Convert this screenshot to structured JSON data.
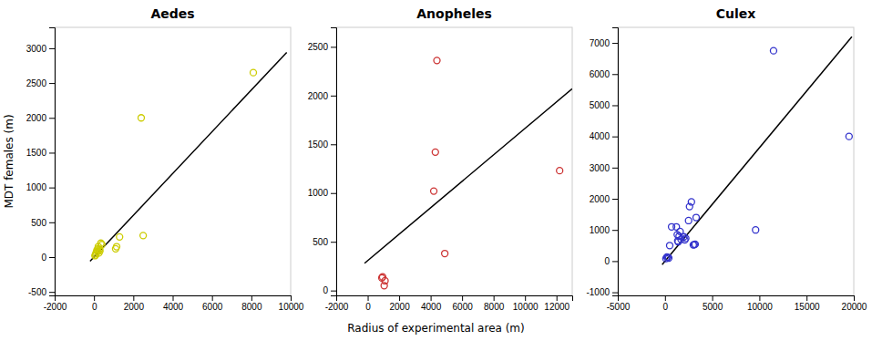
{
  "chart_data": [
    {
      "type": "scatter",
      "title": "Aedes",
      "ylabel": "MDT females (m)",
      "xlim": [
        -2000,
        10000
      ],
      "xticks": [
        -2000,
        0,
        2000,
        4000,
        6000,
        8000,
        10000
      ],
      "ylim": [
        -550,
        3300
      ],
      "yticks": [
        -500,
        0,
        500,
        1000,
        1500,
        2000,
        2500,
        3000
      ],
      "series": [
        {
          "type": "line",
          "color": "black",
          "x": [
            -200,
            9800
          ],
          "values": [
            -60,
            2940
          ]
        },
        {
          "type": "scatter",
          "marker": "open-circle",
          "color": "#cccc00",
          "x": [
            50,
            80,
            100,
            120,
            150,
            180,
            200,
            220,
            250,
            280,
            300,
            350,
            400,
            1100,
            1150,
            1300,
            2400,
            2500,
            8100
          ],
          "values": [
            20,
            30,
            50,
            70,
            100,
            80,
            120,
            150,
            60,
            110,
            90,
            200,
            180,
            120,
            150,
            290,
            2000,
            310,
            2650
          ]
        }
      ]
    },
    {
      "type": "scatter",
      "title": "Anopheles",
      "xlabel": "Radius of experimental area (m)",
      "xlim": [
        -2000,
        13000
      ],
      "xticks": [
        -2000,
        0,
        2000,
        4000,
        6000,
        8000,
        10000,
        12000
      ],
      "ylim": [
        -50,
        2700
      ],
      "yticks": [
        0,
        500,
        1000,
        1500,
        2000,
        2500
      ],
      "series": [
        {
          "type": "line",
          "color": "black",
          "x": [
            -200,
            13000
          ],
          "values": [
            280,
            2070
          ]
        },
        {
          "type": "scatter",
          "marker": "open-circle",
          "color": "#cc3333",
          "x": [
            900,
            950,
            1050,
            1100,
            4200,
            4300,
            4400,
            4900,
            12200
          ],
          "values": [
            130,
            140,
            50,
            100,
            1020,
            1420,
            2360,
            380,
            1230
          ]
        }
      ]
    },
    {
      "type": "scatter",
      "title": "Culex",
      "xlim": [
        -5000,
        20000
      ],
      "xticks": [
        -5000,
        0,
        5000,
        10000,
        15000,
        20000
      ],
      "ylim": [
        -1100,
        7500
      ],
      "yticks": [
        -1000,
        0,
        1000,
        2000,
        3000,
        4000,
        5000,
        6000,
        7000
      ],
      "series": [
        {
          "type": "line",
          "color": "black",
          "x": [
            -300,
            19800
          ],
          "values": [
            -110,
            7200
          ]
        },
        {
          "type": "scatter",
          "marker": "open-circle",
          "color": "#3333cc",
          "x": [
            100,
            200,
            300,
            400,
            500,
            700,
            1200,
            1300,
            1350,
            1400,
            1500,
            1600,
            1700,
            2000,
            2100,
            2200,
            2500,
            2600,
            2800,
            3000,
            3100,
            3200,
            3300,
            9600,
            11500,
            19500
          ],
          "values": [
            80,
            130,
            120,
            100,
            500,
            1100,
            1100,
            850,
            650,
            620,
            800,
            950,
            700,
            780,
            680,
            730,
            1300,
            1750,
            1900,
            520,
            530,
            540,
            1400,
            1000,
            6750,
            4000
          ]
        }
      ]
    }
  ]
}
